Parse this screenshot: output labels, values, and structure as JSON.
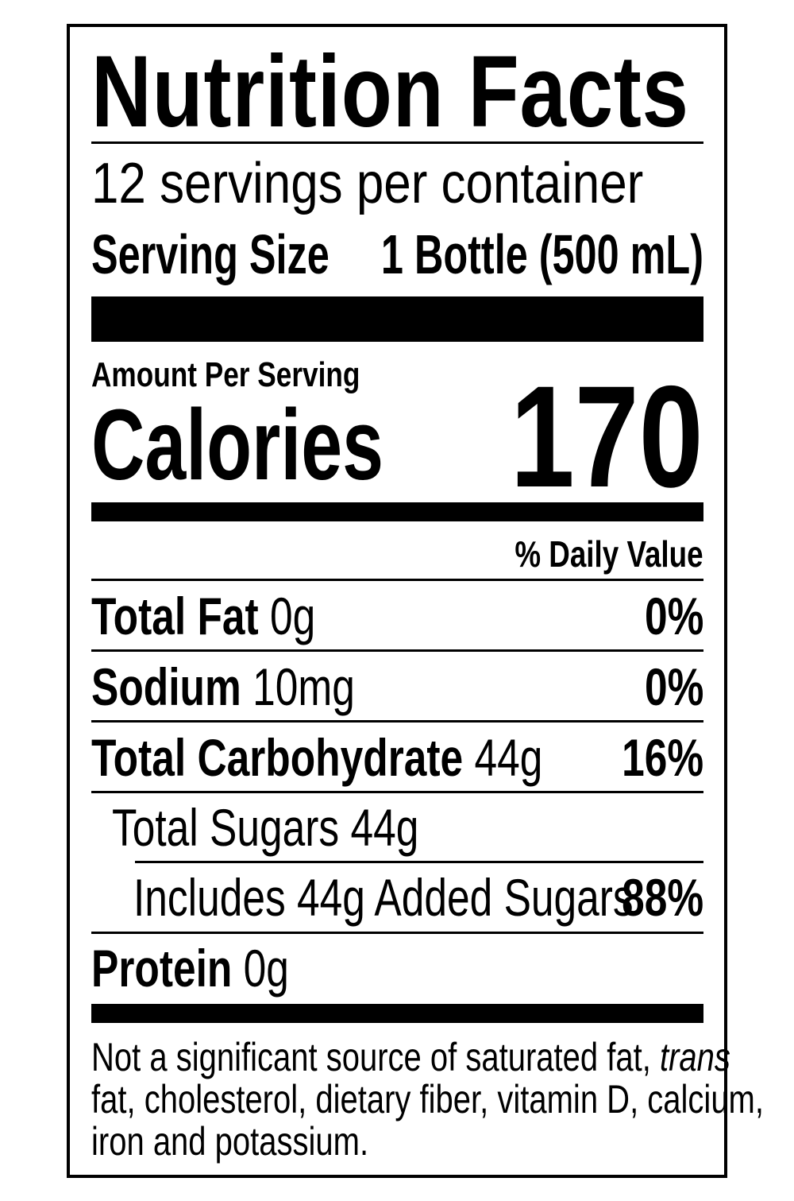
{
  "label": {
    "title": "Nutrition Facts",
    "servings_per_container": "12 servings per container",
    "serving_size_label": "Serving Size",
    "serving_size_value": "1 Bottle (500 mL)",
    "amount_per_serving": "Amount Per Serving",
    "calories_label": "Calories",
    "calories_value": "170",
    "daily_value_header": "% Daily Value",
    "nutrients": [
      {
        "name": "Total Fat",
        "amount": "0g",
        "dv": "0%"
      },
      {
        "name": "Sodium",
        "amount": "10mg",
        "dv": "0%"
      },
      {
        "name": "Total Carbohydrate",
        "amount": "44g",
        "dv": "16%"
      },
      {
        "name": "Total Sugars 44g",
        "amount": "",
        "dv": ""
      },
      {
        "name": "Includes 44g Added Sugars",
        "amount": "",
        "dv": "88%"
      },
      {
        "name": "Protein",
        "amount": "0g",
        "dv": ""
      }
    ],
    "footnote_part1": "Not a significant source of saturated fat,",
    "footnote_italic": "trans",
    "footnote_line2": "fat, cholesterol, dietary fiber, vitamin D, calcium,",
    "footnote_line3": "iron and potassium."
  }
}
